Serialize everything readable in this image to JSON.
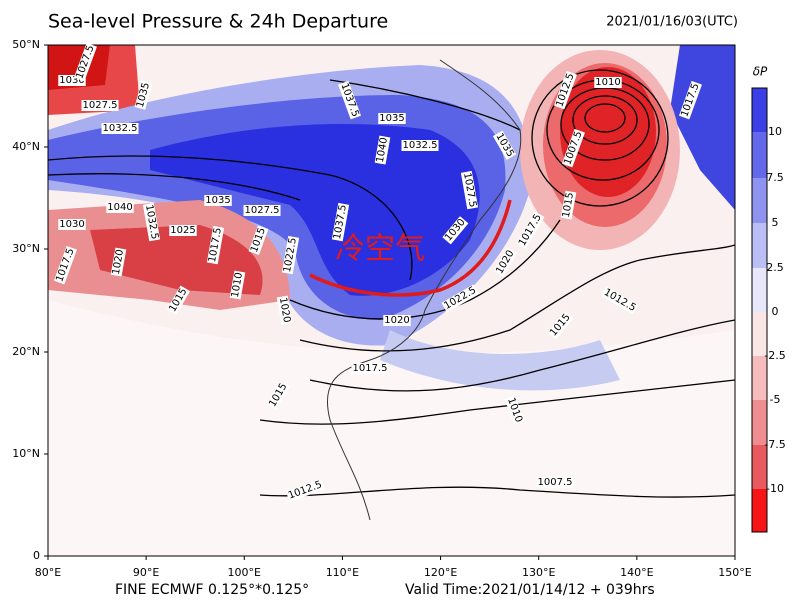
{
  "header": {
    "title": "Sea-level Pressure & 24h Departure",
    "time": "2021/01/16/03(UTC)"
  },
  "axes": {
    "lat_labels": [
      "50°N",
      "40°N",
      "30°N",
      "20°N",
      "10°N",
      "0"
    ],
    "lon_labels": [
      "80°E",
      "90°E",
      "100°E",
      "110°E",
      "120°E",
      "130°E",
      "140°E",
      "150°E"
    ]
  },
  "colorbar": {
    "title": "δP",
    "ticks": [
      10,
      7.5,
      5,
      2.5,
      0,
      -2.5,
      -5,
      -7.5,
      -10
    ]
  },
  "annotation": "冷空气",
  "contour_labels": [
    "1030",
    "1027.5",
    "1027.5",
    "1035",
    "1032.5",
    "1037.5",
    "1035",
    "1040",
    "1032.5",
    "1035",
    "1040",
    "1035",
    "1027.5",
    "1030",
    "1032.5",
    "1025",
    "1017.5",
    "1015",
    "1022.5",
    "1037.5",
    "1027.5",
    "1030",
    "1017.5",
    "1015",
    "1020",
    "1022.5",
    "1015",
    "1020",
    "1017.5",
    "1015",
    "1012.5",
    "1010",
    "1007.5",
    "1012.5",
    "1012.5",
    "1010",
    "1007.5",
    "1017.5",
    "1017.5",
    "1020",
    "1015",
    "1010",
    "1020"
  ],
  "footer": {
    "model": "FINE ECMWF 0.125°*0.125°",
    "valid": "Valid Time:2021/01/14/12 + 039hrs"
  }
}
